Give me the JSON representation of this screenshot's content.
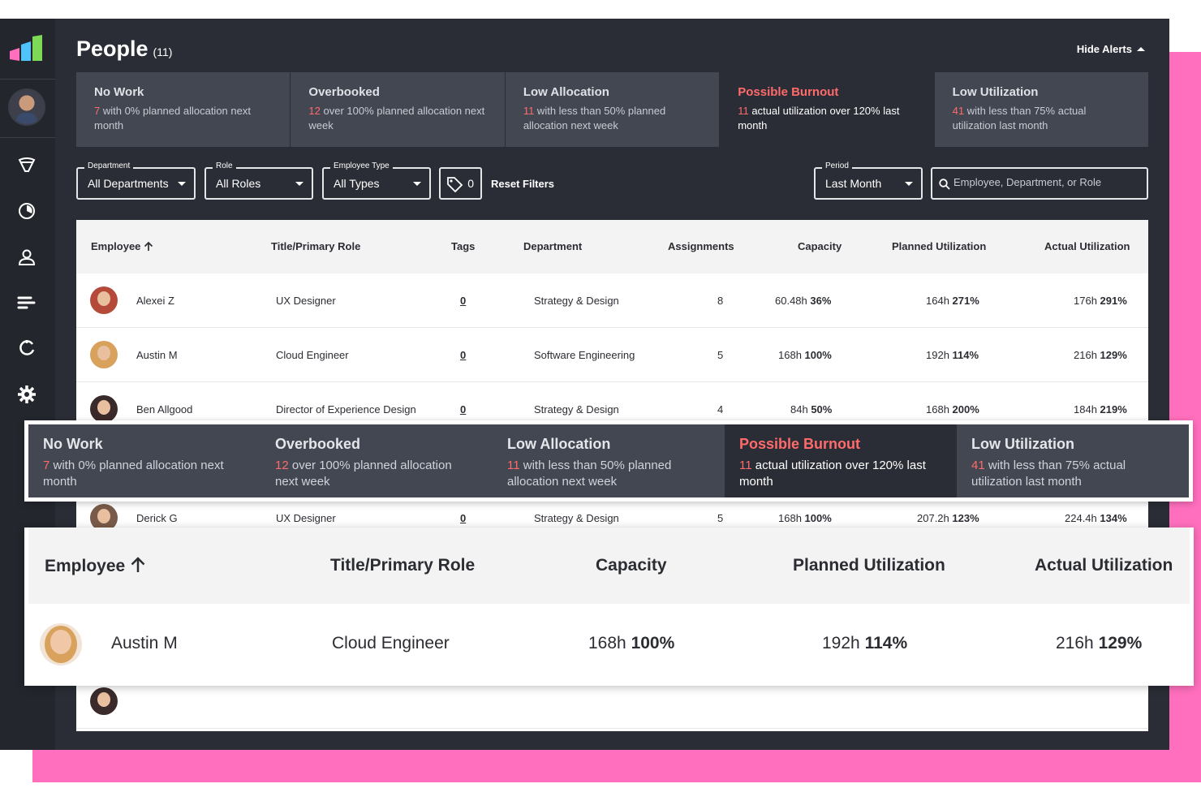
{
  "header": {
    "title": "People",
    "count": "(11)",
    "hide_alerts": "Hide Alerts"
  },
  "sidebar": {
    "icons": [
      "logo-icon",
      "avatar",
      "filter-funnel-icon",
      "reports-chart-icon",
      "person-icon",
      "bars-list-icon",
      "sync-circle-icon",
      "gear-icon"
    ]
  },
  "alerts": [
    {
      "title": "No Work",
      "number": "7",
      "text": " with 0% planned allocation next month",
      "active": false
    },
    {
      "title": "Overbooked",
      "number": "12",
      "text": " over 100% planned allocation next week",
      "active": false
    },
    {
      "title": "Low Allocation",
      "number": "11",
      "text": " with less than 50% planned allocation next week",
      "active": false
    },
    {
      "title": "Possible Burnout",
      "number": "11",
      "text": " actual utilization over 120% last month",
      "active": true
    },
    {
      "title": "Low Utilization",
      "number": "41",
      "text": " with less than 75% actual utilization last month",
      "active": false
    }
  ],
  "filters": {
    "department": {
      "label": "Department",
      "value": "All Departments"
    },
    "role": {
      "label": "Role",
      "value": "All Roles"
    },
    "employee_type": {
      "label": "Employee Type",
      "value": "All Types"
    },
    "tags_count": "0",
    "reset": "Reset Filters",
    "period": {
      "label": "Period",
      "value": "Last Month"
    },
    "search_placeholder": "Employee, Department, or Role"
  },
  "table": {
    "columns": {
      "employee": "Employee",
      "title": "Title/Primary Role",
      "tags": "Tags",
      "department": "Department",
      "assignments": "Assignments",
      "capacity": "Capacity",
      "planned": "Planned Utilization",
      "actual": "Actual Utilization"
    },
    "rows": [
      {
        "name": "Alexei Z",
        "title": "UX Designer",
        "tags": "0",
        "department": "Strategy & Design",
        "assignments": "8",
        "cap_h": "60.48h",
        "cap_p": "36%",
        "plan_h": "164h",
        "plan_p": "271%",
        "act_h": "176h",
        "act_p": "291%"
      },
      {
        "name": "Austin M",
        "title": "Cloud Engineer",
        "tags": "0",
        "department": "Software Engineering",
        "assignments": "5",
        "cap_h": "168h",
        "cap_p": "100%",
        "plan_h": "192h",
        "plan_p": "114%",
        "act_h": "216h",
        "act_p": "129%"
      },
      {
        "name": "Ben Allgood",
        "title": "Director of Experience Design",
        "tags": "0",
        "department": "Strategy & Design",
        "assignments": "4",
        "cap_h": "84h",
        "cap_p": "50%",
        "plan_h": "168h",
        "plan_p": "200%",
        "act_h": "184h",
        "act_p": "219%"
      },
      {
        "name": "Derick G",
        "title": "UX Designer",
        "tags": "0",
        "department": "Strategy & Design",
        "assignments": "5",
        "cap_h": "168h",
        "cap_p": "100%",
        "plan_h": "207.2h",
        "plan_p": "123%",
        "act_h": "224.4h",
        "act_p": "134%"
      }
    ]
  },
  "zoom_table": {
    "columns": {
      "employee": "Employee",
      "title": "Title/Primary Role",
      "capacity": "Capacity",
      "planned": "Planned Utilization",
      "actual": "Actual Utilization"
    },
    "row": {
      "name": "Austin M",
      "title": "Cloud Engineer",
      "cap_h": "168h",
      "cap_p": "100%",
      "plan_h": "192h",
      "plan_p": "114%",
      "act_h": "216h",
      "act_p": "129%"
    }
  },
  "colors": {
    "accent_red": "#ff6b6b",
    "background_pink": "#ff6fbd",
    "app_dark": "#2a2d35"
  }
}
